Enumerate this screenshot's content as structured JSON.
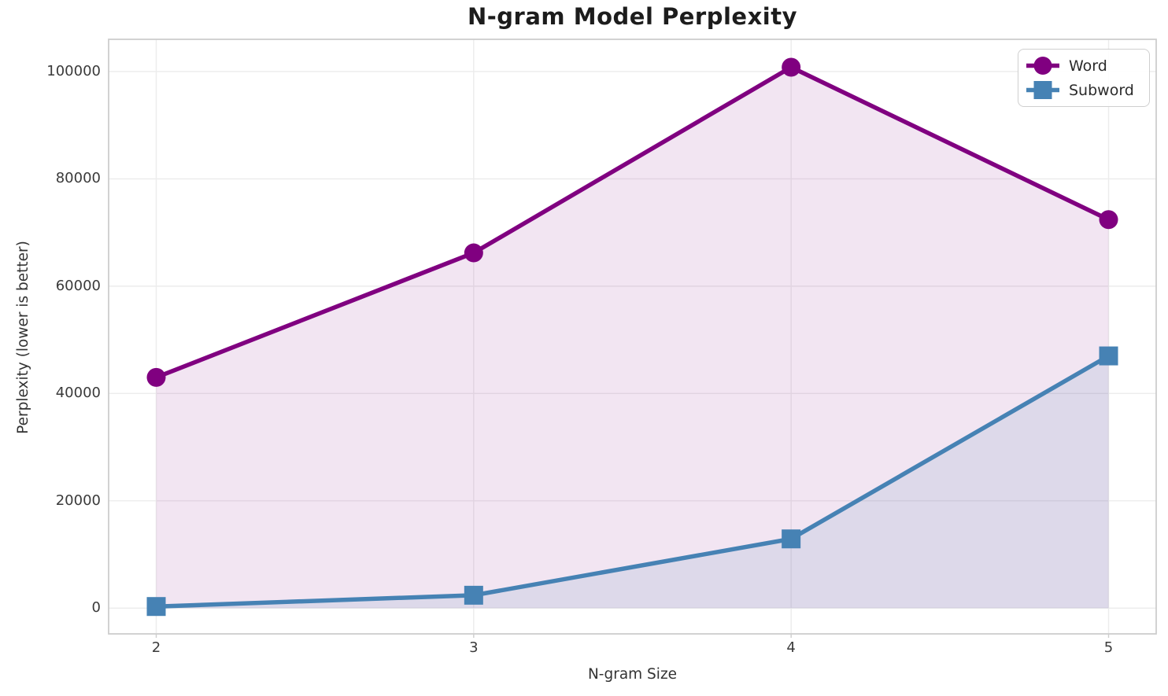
{
  "chart_data": {
    "type": "line",
    "title": "N-gram Model Perplexity",
    "xlabel": "N-gram Size",
    "ylabel": "Perplexity (lower is better)",
    "x": [
      2,
      3,
      4,
      5
    ],
    "series": [
      {
        "name": "Word",
        "marker": "circle",
        "color": "#800080",
        "fill_alpha": 0.1,
        "values": [
          43000,
          66200,
          100800,
          72400
        ]
      },
      {
        "name": "Subword",
        "marker": "square",
        "color": "#4682B4",
        "fill_alpha": 0.12,
        "values": [
          300,
          2400,
          12900,
          47000
        ]
      }
    ],
    "xticks": [
      2,
      3,
      4,
      5
    ],
    "yticks": [
      0,
      20000,
      40000,
      60000,
      80000,
      100000
    ],
    "xlim": [
      1.85,
      5.15
    ],
    "ylim": [
      -4800,
      106000
    ],
    "fill_to_zero": true,
    "grid": true,
    "legend_position": "upper right",
    "layout": {
      "grid_color": "#ececec",
      "spine_color": "#cdcdcd",
      "background": "#ffffff",
      "text_color": "#3a3a3a"
    }
  }
}
